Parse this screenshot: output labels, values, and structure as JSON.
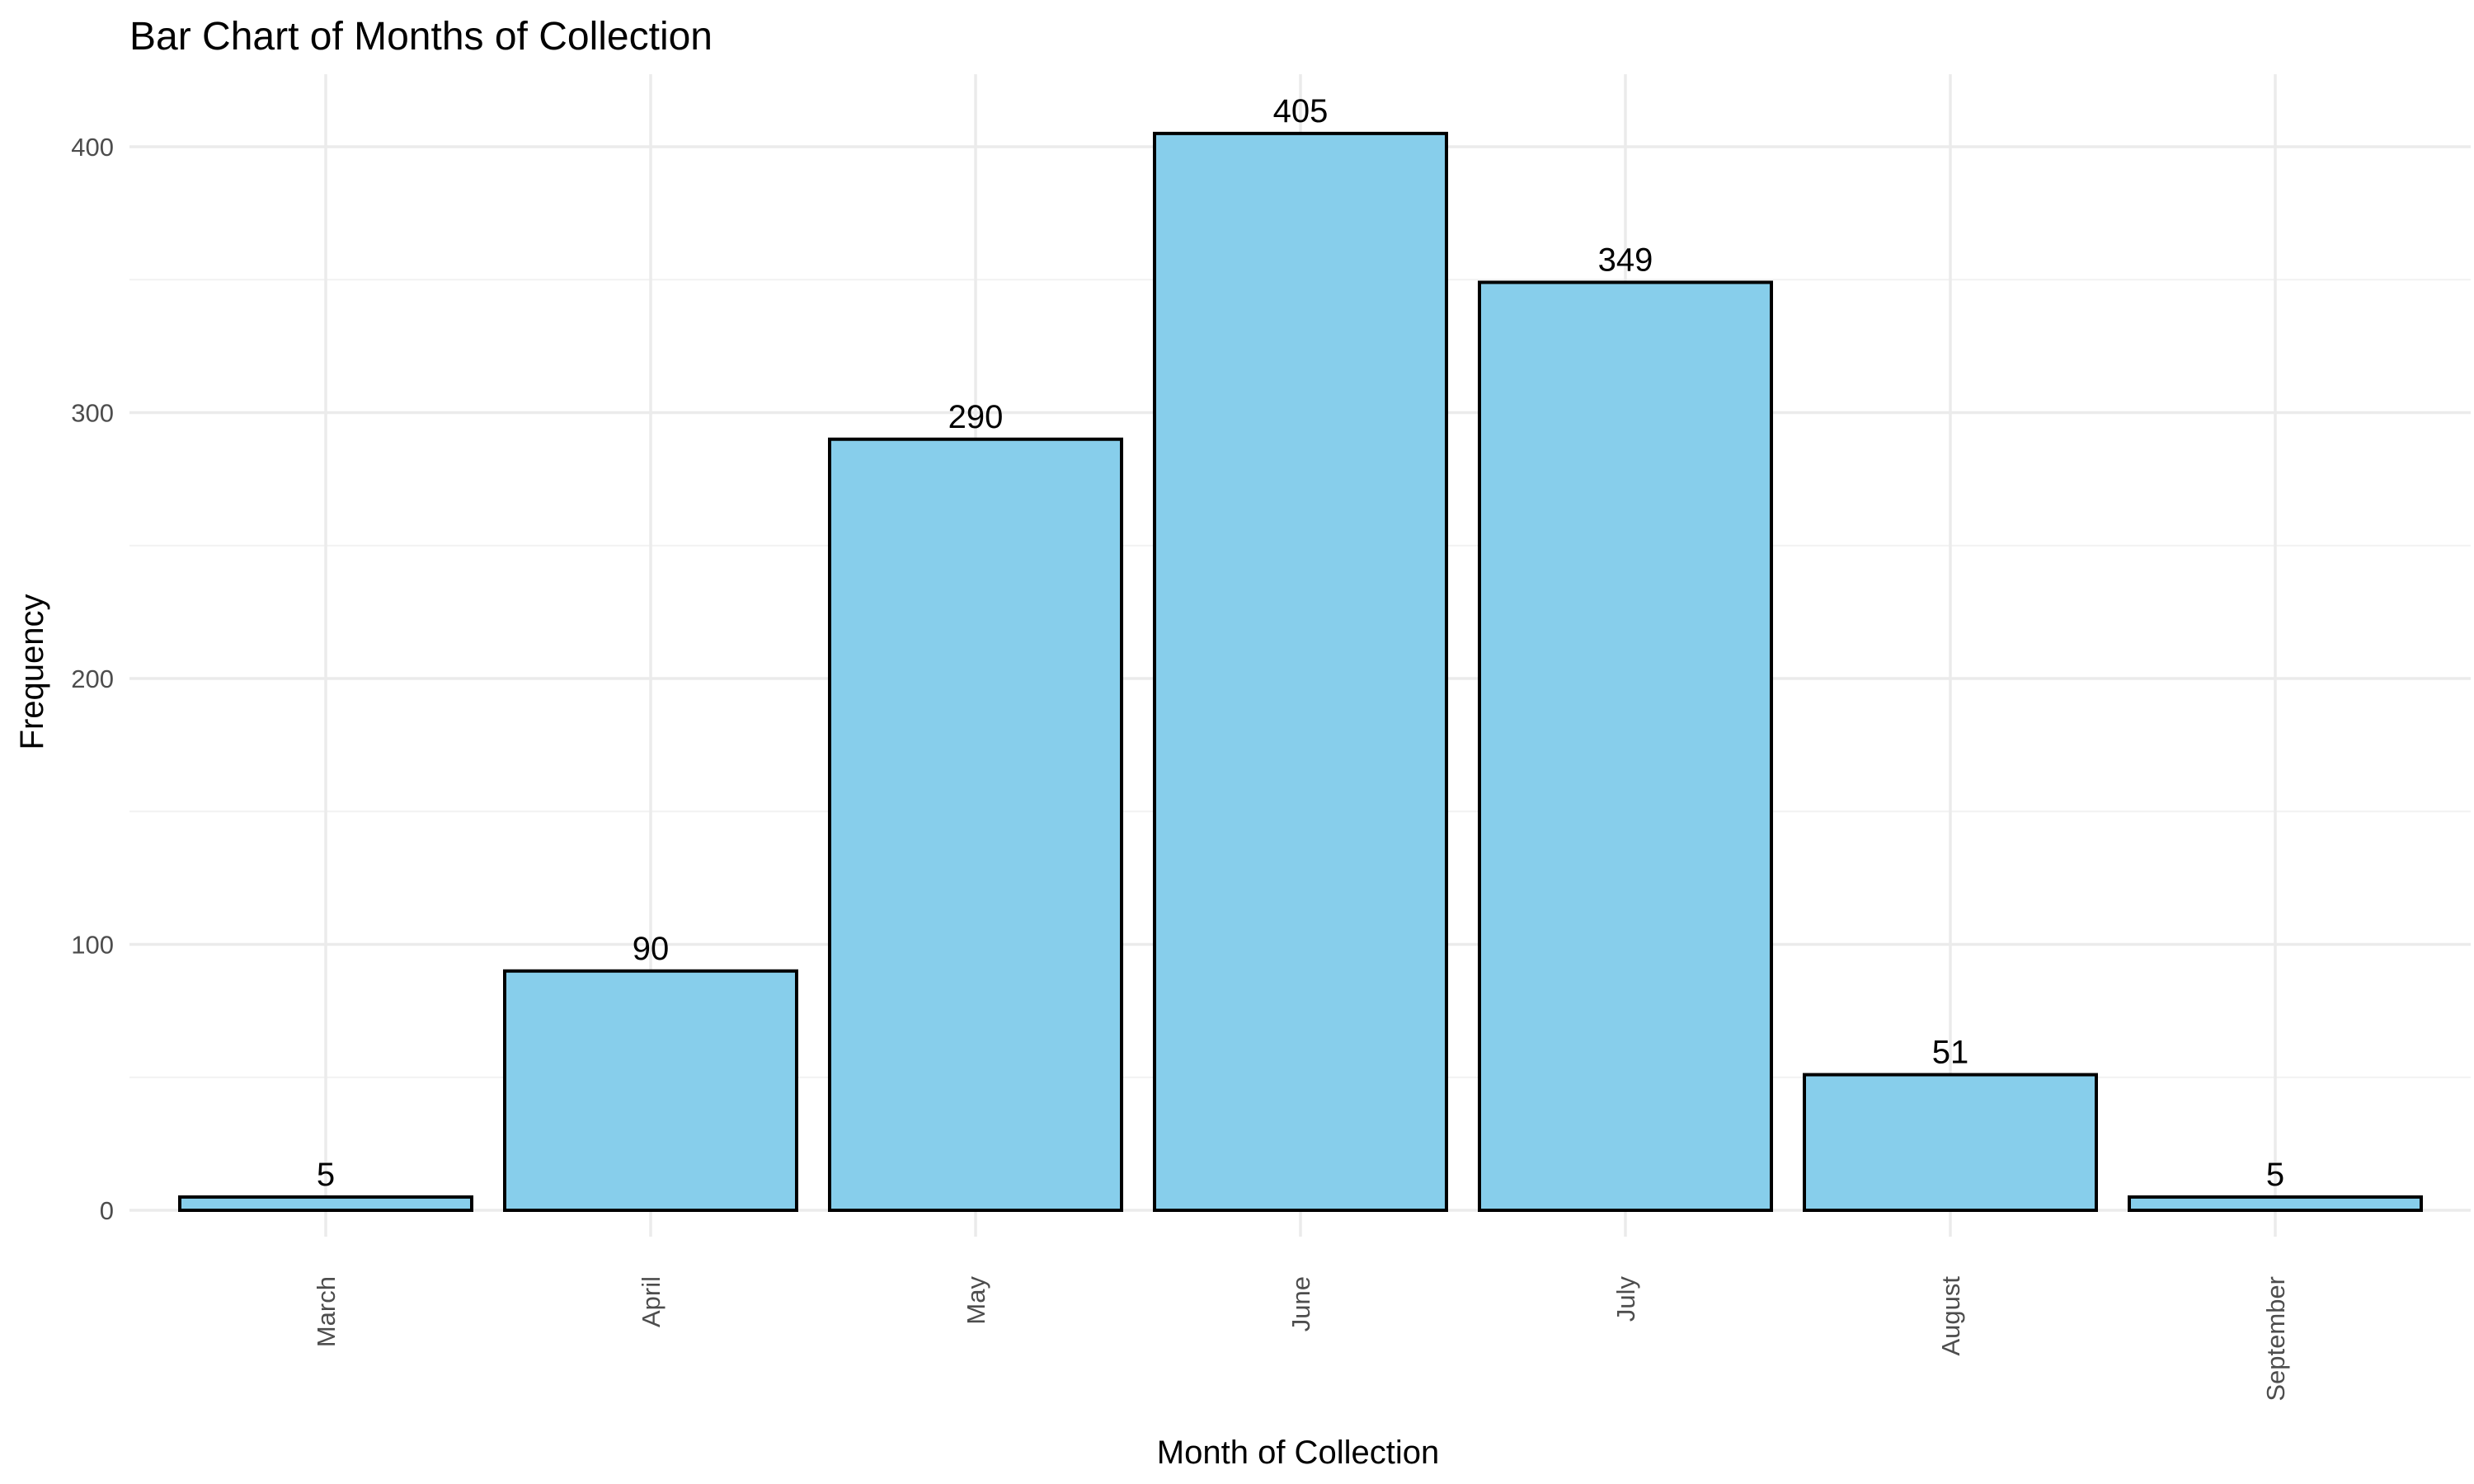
{
  "chart_data": {
    "type": "bar",
    "title": "Bar Chart of Months of Collection",
    "xlabel": "Month of Collection",
    "ylabel": "Frequency",
    "categories": [
      "March",
      "April",
      "May",
      "June",
      "July",
      "August",
      "September"
    ],
    "values": [
      5,
      90,
      290,
      405,
      349,
      51,
      5
    ],
    "ylim": [
      0,
      425
    ],
    "yticks": [
      0,
      100,
      200,
      300,
      400
    ],
    "xtick_rotation": "vertical",
    "grid": true,
    "legend": "none",
    "colors": {
      "bar_fill": "#87CEEB",
      "bar_outline": "#000000"
    }
  }
}
